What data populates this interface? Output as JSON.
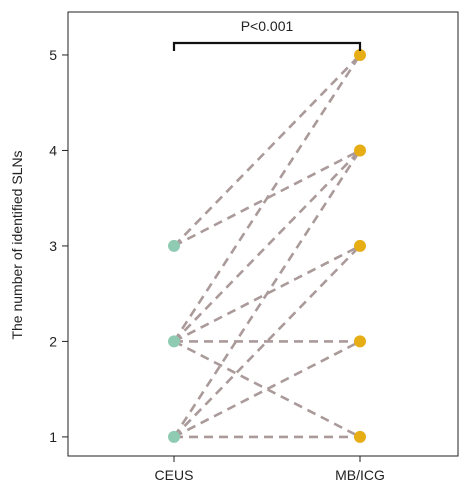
{
  "chart_data": {
    "type": "scatter",
    "title": "",
    "xlabel": "",
    "ylabel": "The number of identified SLNs",
    "categories": [
      "CEUS",
      "MB/ICG"
    ],
    "yticks": [
      1,
      2,
      3,
      4,
      5
    ],
    "ylim": [
      0.8,
      5.45
    ],
    "grid": false,
    "legend": "none",
    "annotation": "P<0.001",
    "series": [
      {
        "values": [
          3,
          5
        ]
      },
      {
        "values": [
          3,
          4
        ]
      },
      {
        "values": [
          2,
          5
        ]
      },
      {
        "values": [
          2,
          4
        ]
      },
      {
        "values": [
          2,
          3
        ]
      },
      {
        "values": [
          2,
          2
        ]
      },
      {
        "values": [
          2,
          1
        ]
      },
      {
        "values": [
          1,
          4
        ]
      },
      {
        "values": [
          1,
          3
        ]
      },
      {
        "values": [
          1,
          2
        ]
      },
      {
        "values": [
          1,
          1
        ]
      }
    ],
    "colors": {
      "ceus_point": "#8fcbb2",
      "mbicg_point": "#e6ad14",
      "pair_line": "#ab9a9a",
      "axis": "#222222",
      "bracket": "#111111"
    }
  }
}
